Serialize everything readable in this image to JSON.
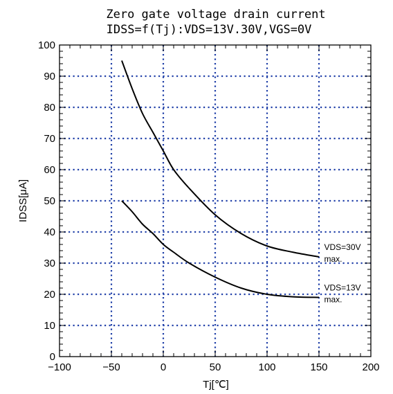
{
  "chart_data": {
    "type": "line",
    "title": "Zero gate voltage drain current",
    "subtitle": "IDSS=f(Tj):VDS=13V.30V,VGS=0V",
    "xlabel": "Tj[℃]",
    "ylabel": "IDSS[μA]",
    "xlim": [
      -100,
      200
    ],
    "ylim": [
      0,
      100
    ],
    "x_ticks": [
      "−100",
      "−50",
      "0",
      "50",
      "100",
      "150",
      "200"
    ],
    "y_ticks": [
      "0",
      "10",
      "20",
      "30",
      "40",
      "50",
      "60",
      "70",
      "80",
      "90",
      "100"
    ],
    "grid": true,
    "grid_style": "dotted",
    "grid_color": "#1f3fa8",
    "line_color": "#000000",
    "series": [
      {
        "name": "VDS=30V max.",
        "label_lines": [
          "VDS=30V",
          "max."
        ],
        "x": [
          -40,
          -30,
          -20,
          -10,
          0,
          10,
          25,
          50,
          75,
          100,
          125,
          150
        ],
        "y": [
          95,
          86,
          78,
          72,
          66,
          60,
          54,
          45.5,
          39.5,
          35.5,
          33.5,
          32
        ]
      },
      {
        "name": "VDS=13V max.",
        "label_lines": [
          "VDS=13V",
          "max."
        ],
        "x": [
          -40,
          -30,
          -20,
          -10,
          0,
          10,
          25,
          50,
          75,
          100,
          125,
          150
        ],
        "y": [
          50,
          46.5,
          42.5,
          39.5,
          36,
          33.5,
          30,
          25.5,
          22,
          20,
          19.2,
          19
        ]
      }
    ]
  }
}
